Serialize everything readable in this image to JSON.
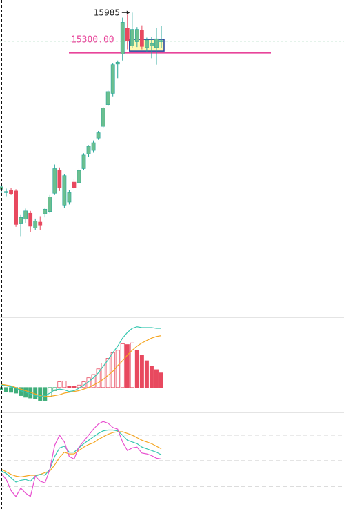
{
  "chart_data": {
    "type": "candlestick",
    "colors": {
      "up": "#26a69a",
      "up_fill": "#6bbf8f",
      "down": "#e8495f",
      "level_line": "#e8449a",
      "last_price_line": "#2e9e5e",
      "box_fill": "#fff9b0",
      "box_stroke": "#1f3f9c",
      "macd_line": "#36c7b0",
      "signal_line": "#f5a623",
      "hist_pos": "#e8495f",
      "hist_neg": "#3fae7a",
      "k_line": "#e84fcf",
      "d_line": "#36c7b0",
      "j_line": "#f5a623"
    },
    "price_axis": {
      "ylim": [
        10800,
        16200
      ]
    },
    "high_annotation": {
      "text": "15985",
      "value": 15985
    },
    "level": {
      "label": "15300.00",
      "value": 15300
    },
    "last_price": 15500,
    "highlight_box": {
      "from_index": 27,
      "to_index": 33,
      "top": 15530,
      "bottom": 15330
    },
    "candles": [
      {
        "o": 12980,
        "h": 13080,
        "l": 12870,
        "c": 13020
      },
      {
        "o": 12920,
        "h": 12990,
        "l": 12860,
        "c": 12940
      },
      {
        "o": 12960,
        "h": 13000,
        "l": 12880,
        "c": 12900
      },
      {
        "o": 12950,
        "h": 12980,
        "l": 12340,
        "c": 12380
      },
      {
        "o": 12390,
        "h": 12540,
        "l": 12180,
        "c": 12500
      },
      {
        "o": 12470,
        "h": 12650,
        "l": 12400,
        "c": 12610
      },
      {
        "o": 12570,
        "h": 12610,
        "l": 12250,
        "c": 12350
      },
      {
        "o": 12320,
        "h": 12480,
        "l": 12290,
        "c": 12440
      },
      {
        "o": 12420,
        "h": 12520,
        "l": 12280,
        "c": 12370
      },
      {
        "o": 12560,
        "h": 12660,
        "l": 12500,
        "c": 12640
      },
      {
        "o": 12600,
        "h": 12880,
        "l": 12570,
        "c": 12850
      },
      {
        "o": 12910,
        "h": 13400,
        "l": 12880,
        "c": 13330
      },
      {
        "o": 13300,
        "h": 13350,
        "l": 12950,
        "c": 13000
      },
      {
        "o": 12710,
        "h": 13240,
        "l": 12660,
        "c": 13210
      },
      {
        "o": 12760,
        "h": 12960,
        "l": 12720,
        "c": 12920
      },
      {
        "o": 13100,
        "h": 13160,
        "l": 12980,
        "c": 13010
      },
      {
        "o": 13090,
        "h": 13330,
        "l": 13070,
        "c": 13300
      },
      {
        "o": 13330,
        "h": 13590,
        "l": 13300,
        "c": 13560
      },
      {
        "o": 13580,
        "h": 13730,
        "l": 13530,
        "c": 13710
      },
      {
        "o": 13640,
        "h": 13810,
        "l": 13600,
        "c": 13770
      },
      {
        "o": 13850,
        "h": 13970,
        "l": 13820,
        "c": 13940
      },
      {
        "o": 14050,
        "h": 14380,
        "l": 14020,
        "c": 14360
      },
      {
        "o": 14420,
        "h": 14660,
        "l": 14400,
        "c": 14640
      },
      {
        "o": 14610,
        "h": 15130,
        "l": 14560,
        "c": 15100
      },
      {
        "o": 15110,
        "h": 15170,
        "l": 14870,
        "c": 15140
      },
      {
        "o": 15280,
        "h": 15900,
        "l": 15170,
        "c": 15820
      },
      {
        "o": 15720,
        "h": 15950,
        "l": 15360,
        "c": 15500
      },
      {
        "o": 15420,
        "h": 15985,
        "l": 15390,
        "c": 15700
      },
      {
        "o": 15490,
        "h": 15740,
        "l": 15400,
        "c": 15700
      },
      {
        "o": 15680,
        "h": 15770,
        "l": 15360,
        "c": 15410
      },
      {
        "o": 15390,
        "h": 15560,
        "l": 15320,
        "c": 15520
      },
      {
        "o": 15420,
        "h": 15570,
        "l": 15210,
        "c": 15460
      },
      {
        "o": 15390,
        "h": 15720,
        "l": 15100,
        "c": 15540
      },
      {
        "o": 15490,
        "h": 15760,
        "l": 15380,
        "c": 15510
      }
    ],
    "macd": {
      "ylim": [
        -3.0,
        8.5
      ],
      "macd_line": [
        0.3,
        0.2,
        0.1,
        -0.1,
        -0.4,
        -0.6,
        -0.8,
        -1.0,
        -1.1,
        -1.0,
        -0.7,
        -0.3,
        -0.2,
        -0.3,
        -0.5,
        -0.4,
        -0.1,
        0.3,
        0.7,
        1.2,
        1.8,
        2.6,
        3.4,
        4.3,
        5.1,
        6.1,
        6.8,
        7.3,
        7.5,
        7.4,
        7.4,
        7.4,
        7.3,
        7.3
      ],
      "signal_line": [
        0.4,
        0.3,
        0.2,
        0.0,
        -0.2,
        -0.4,
        -0.6,
        -0.8,
        -1.0,
        -1.1,
        -1.1,
        -1.0,
        -0.9,
        -0.7,
        -0.6,
        -0.5,
        -0.4,
        -0.2,
        0.0,
        0.3,
        0.6,
        1.0,
        1.5,
        2.0,
        2.7,
        3.3,
        4.0,
        4.6,
        5.1,
        5.5,
        5.8,
        6.1,
        6.3,
        6.4
      ],
      "histogram": [
        -0.3,
        -0.5,
        -0.6,
        -0.7,
        -1.0,
        -1.2,
        -1.3,
        -1.4,
        -1.6,
        -1.6,
        -1.1,
        -0.4,
        0.7,
        0.8,
        0.2,
        0.2,
        0.3,
        0.7,
        1.2,
        1.6,
        2.3,
        3.0,
        3.6,
        4.3,
        4.6,
        5.4,
        5.3,
        5.5,
        4.6,
        4.0,
        3.3,
        2.6,
        2.2,
        1.8
      ],
      "hist_hollow": [
        false,
        false,
        false,
        false,
        false,
        false,
        false,
        false,
        false,
        false,
        true,
        true,
        true,
        true,
        false,
        false,
        true,
        true,
        true,
        true,
        true,
        true,
        true,
        true,
        true,
        true,
        false,
        true,
        false,
        false,
        false,
        false,
        false,
        false
      ]
    },
    "kdj": {
      "ylim": [
        -5,
        105
      ],
      "reference_levels": [
        80,
        50,
        20
      ],
      "k": [
        35,
        28,
        15,
        8,
        18,
        12,
        8,
        32,
        26,
        24,
        40,
        68,
        80,
        72,
        55,
        52,
        66,
        73,
        80,
        87,
        93,
        96,
        94,
        89,
        87,
        72,
        62,
        65,
        66,
        59,
        58,
        56,
        53,
        52
      ],
      "d": [
        38,
        35,
        30,
        25,
        27,
        28,
        26,
        32,
        34,
        33,
        40,
        55,
        65,
        67,
        60,
        60,
        65,
        70,
        74,
        78,
        82,
        85,
        86,
        86,
        85,
        80,
        74,
        72,
        70,
        66,
        64,
        62,
        60,
        57
      ],
      "j": [
        40,
        37,
        34,
        32,
        31,
        32,
        33,
        33,
        34,
        36,
        38,
        45,
        54,
        60,
        58,
        58,
        62,
        66,
        69,
        71,
        75,
        78,
        81,
        83,
        84,
        84,
        82,
        80,
        77,
        74,
        72,
        70,
        67,
        64
      ]
    }
  }
}
